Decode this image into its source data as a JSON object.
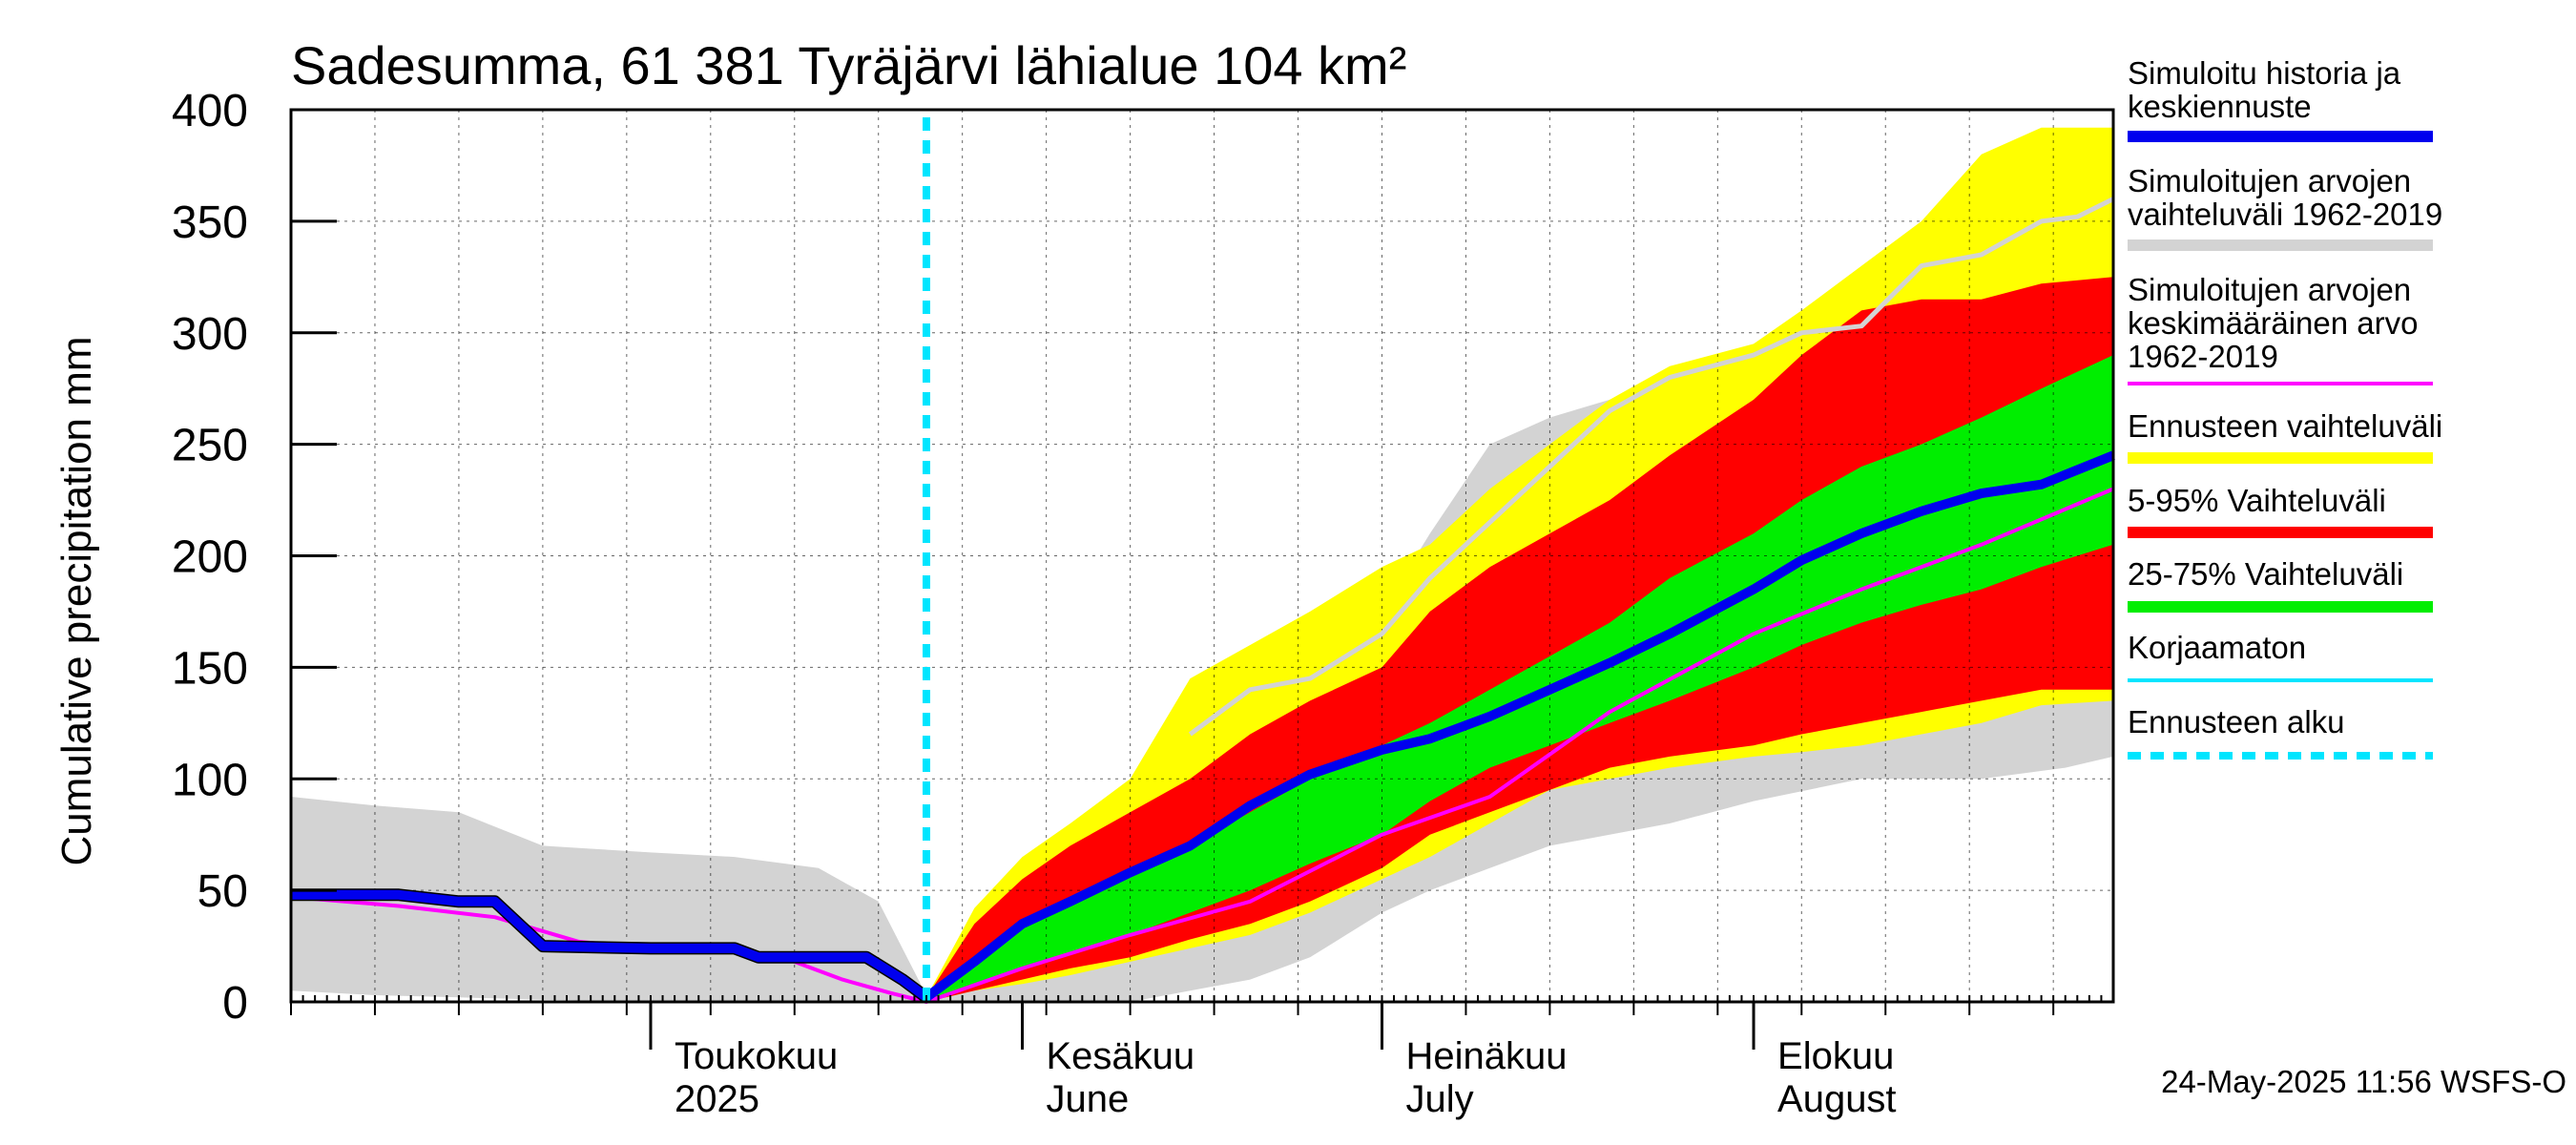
{
  "chart_data": {
    "type": "area",
    "title": "Sadesumma, 61 381 Tyräjärvi lähialue 104 km²",
    "ylabel": "Cumulative precipitation   mm",
    "xlabel": "",
    "xlim": [
      "2025-04-01",
      "2025-08-31"
    ],
    "ylim": [
      0,
      400
    ],
    "yticks": [
      0,
      50,
      100,
      150,
      200,
      250,
      300,
      350,
      400
    ],
    "grid": true,
    "legend_position": "right",
    "forecast_start": "2025-05-24",
    "month_labels": [
      {
        "date": "2025-05-01",
        "line1": "Toukokuu",
        "line2": "2025"
      },
      {
        "date": "2025-06-01",
        "line1": "Kesäkuu",
        "line2": "June"
      },
      {
        "date": "2025-07-01",
        "line1": "Heinäkuu",
        "line2": "July"
      },
      {
        "date": "2025-08-01",
        "line1": "Elokuu",
        "line2": "August"
      }
    ],
    "bands": [
      {
        "id": "hist-range",
        "color": "#d3d3d3",
        "x": [
          "2025-04-01",
          "2025-04-08",
          "2025-04-15",
          "2025-04-22",
          "2025-05-01",
          "2025-05-08",
          "2025-05-15",
          "2025-05-20",
          "2025-05-24",
          "2025-06-01",
          "2025-06-10",
          "2025-06-20",
          "2025-06-25",
          "2025-06-28",
          "2025-07-01",
          "2025-07-05",
          "2025-07-10",
          "2025-07-15",
          "2025-07-20",
          "2025-07-25",
          "2025-08-01",
          "2025-08-10",
          "2025-08-20",
          "2025-08-27",
          "2025-08-31"
        ],
        "upper": [
          92,
          88,
          85,
          70,
          67,
          65,
          60,
          45,
          3,
          50,
          80,
          115,
          140,
          165,
          175,
          210,
          250,
          262,
          270,
          278,
          290,
          310,
          330,
          355,
          360
        ],
        "lower": [
          5,
          3,
          2,
          1,
          0,
          0,
          0,
          0,
          0,
          0,
          0,
          10,
          20,
          30,
          40,
          50,
          60,
          70,
          75,
          80,
          90,
          100,
          100,
          105,
          110
        ]
      },
      {
        "id": "forecast-range",
        "color": "#ffff00",
        "x": [
          "2025-05-24",
          "2025-05-28",
          "2025-06-01",
          "2025-06-05",
          "2025-06-10",
          "2025-06-15",
          "2025-06-20",
          "2025-06-25",
          "2025-07-01",
          "2025-07-05",
          "2025-07-10",
          "2025-07-15",
          "2025-07-20",
          "2025-07-25",
          "2025-08-01",
          "2025-08-05",
          "2025-08-10",
          "2025-08-15",
          "2025-08-20",
          "2025-08-25",
          "2025-08-31"
        ],
        "upper": [
          2,
          42,
          65,
          80,
          100,
          145,
          160,
          175,
          195,
          205,
          230,
          250,
          270,
          285,
          295,
          310,
          330,
          350,
          380,
          392,
          392
        ],
        "lower": [
          0,
          5,
          8,
          12,
          18,
          24,
          30,
          40,
          55,
          65,
          80,
          95,
          100,
          105,
          110,
          112,
          115,
          120,
          125,
          133,
          135
        ]
      },
      {
        "id": "p5-95",
        "color": "#ff0000",
        "x": [
          "2025-05-24",
          "2025-05-28",
          "2025-06-01",
          "2025-06-05",
          "2025-06-10",
          "2025-06-15",
          "2025-06-20",
          "2025-06-25",
          "2025-07-01",
          "2025-07-05",
          "2025-07-10",
          "2025-07-15",
          "2025-07-20",
          "2025-07-25",
          "2025-08-01",
          "2025-08-05",
          "2025-08-10",
          "2025-08-15",
          "2025-08-20",
          "2025-08-25",
          "2025-08-31"
        ],
        "upper": [
          2,
          35,
          55,
          70,
          85,
          100,
          120,
          135,
          150,
          175,
          195,
          210,
          225,
          245,
          270,
          290,
          310,
          315,
          315,
          322,
          325
        ],
        "lower": [
          0,
          5,
          10,
          15,
          20,
          28,
          35,
          45,
          60,
          75,
          85,
          95,
          105,
          110,
          115,
          120,
          125,
          130,
          135,
          140,
          140
        ]
      },
      {
        "id": "p25-75",
        "color": "#00ee00",
        "x": [
          "2025-05-24",
          "2025-05-28",
          "2025-06-01",
          "2025-06-05",
          "2025-06-10",
          "2025-06-15",
          "2025-06-20",
          "2025-06-25",
          "2025-07-01",
          "2025-07-05",
          "2025-07-10",
          "2025-07-15",
          "2025-07-20",
          "2025-07-25",
          "2025-08-01",
          "2025-08-05",
          "2025-08-10",
          "2025-08-15",
          "2025-08-20",
          "2025-08-25",
          "2025-08-31"
        ],
        "upper": [
          2,
          20,
          35,
          45,
          58,
          70,
          85,
          100,
          115,
          125,
          140,
          155,
          170,
          190,
          210,
          225,
          240,
          250,
          262,
          275,
          290
        ],
        "lower": [
          0,
          7,
          15,
          22,
          30,
          40,
          50,
          62,
          75,
          90,
          105,
          115,
          125,
          135,
          150,
          160,
          170,
          178,
          185,
          195,
          205
        ]
      }
    ],
    "series": [
      {
        "id": "hist-upper-line",
        "color": "#d3d3d3",
        "x": [
          "2025-06-15",
          "2025-06-20",
          "2025-06-25",
          "2025-07-01",
          "2025-07-05",
          "2025-07-10",
          "2025-07-15",
          "2025-07-20",
          "2025-07-25",
          "2025-08-01",
          "2025-08-05",
          "2025-08-10",
          "2025-08-15",
          "2025-08-20",
          "2025-08-25",
          "2025-08-28",
          "2025-08-31"
        ],
        "y": [
          120,
          140,
          145,
          165,
          190,
          215,
          240,
          265,
          280,
          290,
          300,
          303,
          330,
          335,
          350,
          352,
          360
        ]
      },
      {
        "id": "mean",
        "name": "Simuloitujen arvojen keskimääräinen arvo 1962-2019",
        "color": "#ff00ff",
        "x": [
          "2025-04-01",
          "2025-04-10",
          "2025-04-18",
          "2025-04-25",
          "2025-05-01",
          "2025-05-07",
          "2025-05-12",
          "2025-05-17",
          "2025-05-21",
          "2025-05-24",
          "2025-06-01",
          "2025-06-10",
          "2025-06-20",
          "2025-07-01",
          "2025-07-10",
          "2025-07-20",
          "2025-08-01",
          "2025-08-10",
          "2025-08-20",
          "2025-08-31"
        ],
        "y": [
          47,
          43,
          38,
          27,
          24,
          23,
          20,
          10,
          4,
          0,
          15,
          30,
          45,
          75,
          92,
          130,
          165,
          185,
          205,
          230
        ]
      },
      {
        "id": "uncorrected",
        "name": "Korjaamaton",
        "color": "#00e5ff",
        "x": [
          "2025-04-01",
          "2025-04-10",
          "2025-04-15",
          "2025-04-18",
          "2025-04-22",
          "2025-05-01",
          "2025-05-08",
          "2025-05-10",
          "2025-05-17",
          "2025-05-19",
          "2025-05-22",
          "2025-05-24"
        ],
        "y": [
          48,
          48,
          45,
          45,
          25,
          24,
          24,
          20,
          20,
          20,
          10,
          2
        ]
      },
      {
        "id": "simulated",
        "name": "Simuloitu historia ja keskiennuste",
        "color": "#0000ee",
        "x": [
          "2025-04-01",
          "2025-04-10",
          "2025-04-15",
          "2025-04-18",
          "2025-04-22",
          "2025-05-01",
          "2025-05-08",
          "2025-05-10",
          "2025-05-17",
          "2025-05-19",
          "2025-05-22",
          "2025-05-24",
          "2025-05-28",
          "2025-06-01",
          "2025-06-05",
          "2025-06-10",
          "2025-06-15",
          "2025-06-20",
          "2025-06-25",
          "2025-07-01",
          "2025-07-05",
          "2025-07-10",
          "2025-07-15",
          "2025-07-20",
          "2025-07-25",
          "2025-08-01",
          "2025-08-05",
          "2025-08-10",
          "2025-08-15",
          "2025-08-20",
          "2025-08-25",
          "2025-08-31"
        ],
        "y": [
          48,
          48,
          45,
          45,
          25,
          24,
          24,
          20,
          20,
          20,
          10,
          2,
          18,
          35,
          45,
          58,
          70,
          88,
          102,
          113,
          118,
          128,
          140,
          152,
          165,
          185,
          198,
          210,
          220,
          228,
          232,
          245
        ]
      }
    ],
    "legend": [
      {
        "lines": [
          "Simuloitu historia ja",
          "keskiennuste"
        ],
        "color": "#0000ee",
        "style": "solid"
      },
      {
        "lines": [
          "Simuloitujen arvojen",
          "vaihteluväli 1962-2019"
        ],
        "color": "#d3d3d3",
        "style": "solid"
      },
      {
        "lines": [
          "Simuloitujen arvojen",
          "keskimääräinen arvo",
          "   1962-2019"
        ],
        "color": "#ff00ff",
        "style": "thin"
      },
      {
        "lines": [
          "Ennusteen vaihteluväli"
        ],
        "color": "#ffff00",
        "style": "solid"
      },
      {
        "lines": [
          "5-95% Vaihteluväli"
        ],
        "color": "#ff0000",
        "style": "solid"
      },
      {
        "lines": [
          "25-75% Vaihteluväli"
        ],
        "color": "#00ee00",
        "style": "solid"
      },
      {
        "lines": [
          "Korjaamaton"
        ],
        "color": "#00e5ff",
        "style": "thin"
      },
      {
        "lines": [
          "Ennusteen alku"
        ],
        "color": "#00e5ff",
        "style": "dashed"
      }
    ],
    "footer": "24-May-2025 11:56 WSFS-O"
  }
}
